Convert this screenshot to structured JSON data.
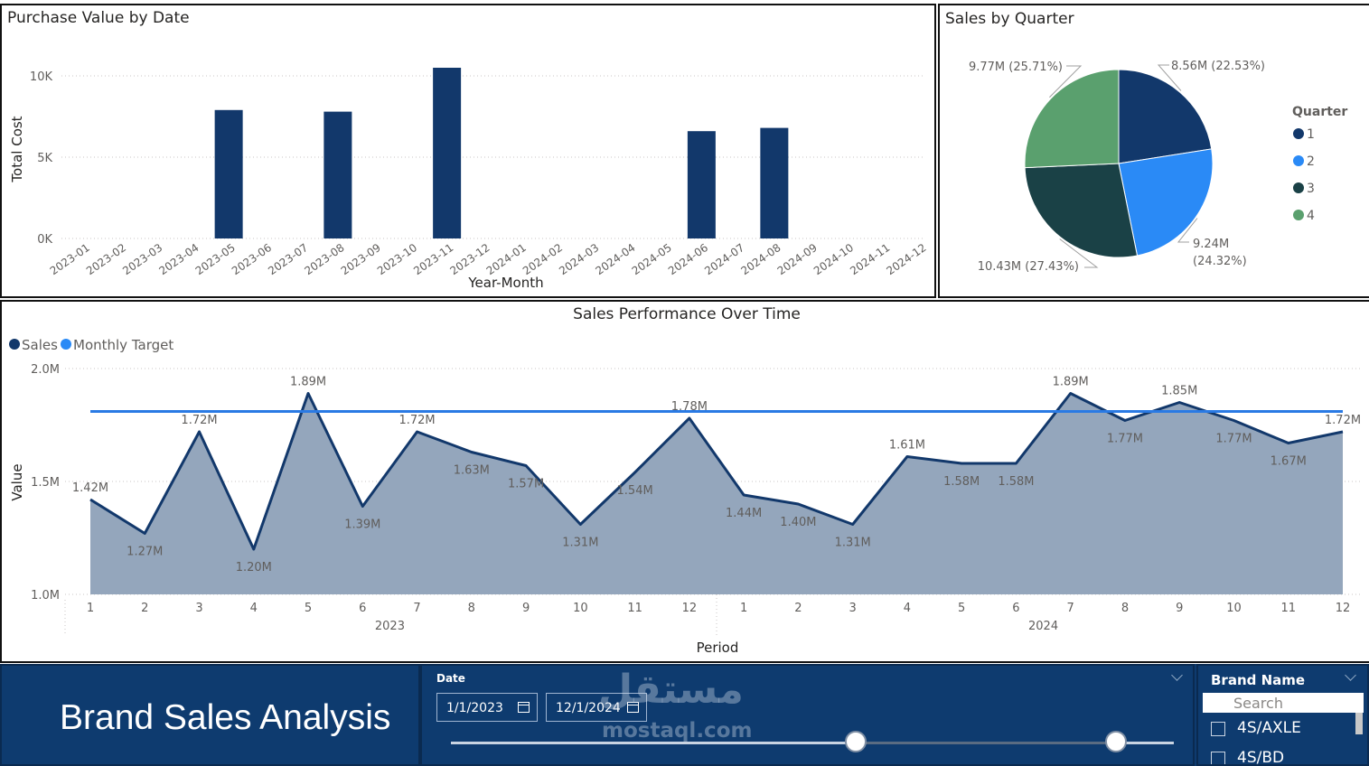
{
  "bar_chart": {
    "title": "Purchase Value by Date",
    "chart_data": {
      "type": "bar",
      "title": "Purchase Value by Date",
      "xlabel": "Year-Month",
      "ylabel": "Total Cost",
      "ylim": [
        0,
        11000
      ],
      "yticks": [
        0,
        5000,
        10000
      ],
      "ytick_labels": [
        "0K",
        "5K",
        "10K"
      ],
      "categories": [
        "2023-01",
        "2023-02",
        "2023-03",
        "2023-04",
        "2023-05",
        "2023-06",
        "2023-07",
        "2023-08",
        "2023-09",
        "2023-10",
        "2023-11",
        "2023-12",
        "2024-01",
        "2024-02",
        "2024-03",
        "2024-04",
        "2024-05",
        "2024-06",
        "2024-07",
        "2024-08",
        "2024-09",
        "2024-10",
        "2024-11",
        "2024-12"
      ],
      "values": [
        0,
        0,
        0,
        0,
        7900,
        0,
        0,
        7800,
        0,
        0,
        10500,
        0,
        0,
        0,
        0,
        0,
        0,
        6600,
        0,
        6800,
        0,
        0,
        0,
        0
      ],
      "color": "#12386b",
      "grid": true
    }
  },
  "pie_chart": {
    "title": "Sales by Quarter",
    "chart_data": {
      "type": "pie",
      "title": "Sales by Quarter",
      "legend_title": "Quarter",
      "legend_position": "right",
      "slices": [
        {
          "label": "1",
          "value": 8.56,
          "percent": 22.53,
          "text": "8.56M (22.53%)",
          "color": "#12386b"
        },
        {
          "label": "2",
          "value": 9.24,
          "percent": 24.32,
          "text": "9.24M (24.32%)",
          "color": "#2a8af6"
        },
        {
          "label": "3",
          "value": 10.43,
          "percent": 27.43,
          "text": "10.43M (27.43%)",
          "color": "#1a4146"
        },
        {
          "label": "4",
          "value": 9.77,
          "percent": 25.71,
          "text": "9.77M (25.71%)",
          "color": "#5aa06e"
        }
      ],
      "label_texts": {
        "q2_line1": "9.24M",
        "q2_line2": "(24.32%)"
      }
    }
  },
  "line_chart": {
    "title": "Sales Performance Over Time",
    "chart_data": {
      "type": "area",
      "title": "Sales Performance Over Time",
      "xlabel": "Period",
      "ylabel": "Value",
      "ylim": [
        1.0,
        2.0
      ],
      "yticks": [
        1.0,
        1.5,
        2.0
      ],
      "ytick_labels": [
        "1.0M",
        "1.5M",
        "2.0M"
      ],
      "years": [
        "2023",
        "2024"
      ],
      "months": [
        "1",
        "2",
        "3",
        "4",
        "5",
        "6",
        "7",
        "8",
        "9",
        "10",
        "11",
        "12",
        "1",
        "2",
        "3",
        "4",
        "5",
        "6",
        "7",
        "8",
        "9",
        "10",
        "11",
        "12"
      ],
      "series": [
        {
          "name": "Sales",
          "color": "#12386b",
          "values": [
            1.42,
            1.27,
            1.72,
            1.2,
            1.89,
            1.39,
            1.72,
            1.63,
            1.57,
            1.31,
            1.54,
            1.78,
            1.44,
            1.4,
            1.31,
            1.61,
            1.58,
            1.58,
            1.89,
            1.77,
            1.85,
            1.77,
            1.67,
            1.72
          ],
          "labels": [
            "1.42M",
            "1.27M",
            "1.72M",
            "1.20M",
            "1.89M",
            "1.39M",
            "1.72M",
            "1.63M",
            "1.57M",
            "1.31M",
            "1.54M",
            "1.78M",
            "1.44M",
            "1.40M",
            "1.31M",
            "1.61M",
            "1.58M",
            "1.58M",
            "1.89M",
            "1.77M",
            "1.85M",
            "1.77M",
            "1.67M",
            "1.72M"
          ]
        },
        {
          "name": "Monthly Target",
          "color": "#2a7ae4",
          "values": [
            1.81,
            1.81,
            1.81,
            1.81,
            1.81,
            1.81,
            1.81,
            1.81,
            1.81,
            1.81,
            1.81,
            1.81,
            1.81,
            1.81,
            1.81,
            1.81,
            1.81,
            1.81,
            1.81,
            1.81,
            1.81,
            1.81,
            1.81,
            1.81
          ]
        }
      ],
      "legend_position": "top-left",
      "grid": true
    }
  },
  "report": {
    "title": "Brand Sales Analysis"
  },
  "date_slicer": {
    "label": "Date",
    "start": "1/1/2023",
    "end": "12/1/2024",
    "range_fraction": [
      0.56,
      0.92
    ]
  },
  "brand_slicer": {
    "label": "Brand Name",
    "search_placeholder": "Search",
    "items": [
      "4S/AXLE",
      "4S/BD"
    ]
  },
  "watermark": {
    "arabic": "مستقل",
    "latin": "mostaql.com"
  }
}
